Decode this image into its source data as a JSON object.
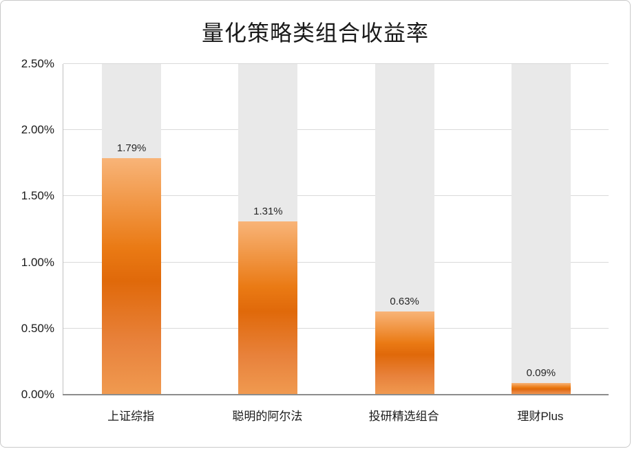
{
  "chart_data": {
    "type": "bar",
    "title": "量化策略类组合收益率",
    "categories": [
      "上证综指",
      "聪明的阿尔法",
      "投研精选组合",
      "理财Plus"
    ],
    "values": [
      1.79,
      1.31,
      0.63,
      0.09
    ],
    "data_labels": [
      "1.79%",
      "1.31%",
      "0.63%",
      "0.09%"
    ],
    "xlabel": "",
    "ylabel": "",
    "ylim": [
      0,
      2.5
    ],
    "ytick_values": [
      0,
      0.5,
      1.0,
      1.5,
      2.0,
      2.5
    ],
    "ytick_labels": [
      "0.00%",
      "0.50%",
      "1.00%",
      "1.50%",
      "2.00%",
      "2.50%"
    ],
    "grid": "horizontal gridlines on",
    "legend": "none",
    "colors": {
      "bar_gradient_top": "#F8B478",
      "bar_gradient_mid": "#E0690A",
      "bar_gradient_bottom": "#F09A50",
      "track": "#E9E9E9",
      "gridline": "#D9D9D9",
      "axis_line": "#8C8C8C",
      "plot_border": "#BFBFBF",
      "text": "#1A1A1A",
      "chart_border": "#C9C9C9",
      "background": "#FFFFFF"
    }
  }
}
